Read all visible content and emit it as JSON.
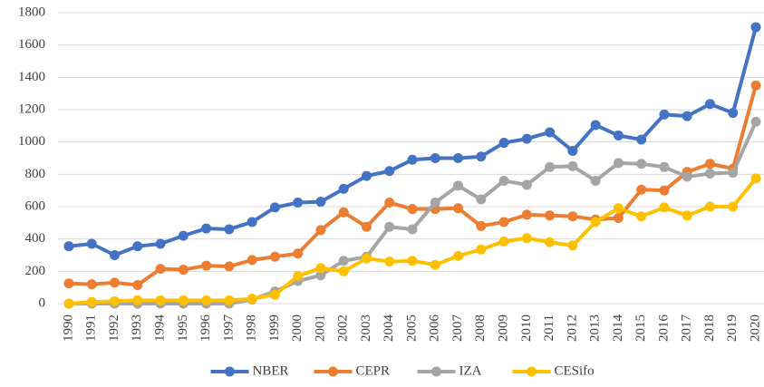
{
  "chart_data": {
    "type": "line",
    "categories": [
      "1990",
      "1991",
      "1992",
      "1993",
      "1994",
      "1995",
      "1996",
      "1997",
      "1998",
      "1999",
      "2000",
      "2001",
      "2002",
      "2003",
      "2004",
      "2005",
      "2006",
      "2007",
      "2008",
      "2009",
      "2010",
      "2011",
      "2012",
      "2013",
      "2014",
      "2015",
      "2016",
      "2017",
      "2018",
      "2019",
      "2020"
    ],
    "series": [
      {
        "name": "NBER",
        "color": "#4472c4",
        "values": [
          355,
          370,
          300,
          355,
          370,
          420,
          465,
          460,
          505,
          595,
          625,
          630,
          710,
          790,
          820,
          890,
          900,
          900,
          910,
          995,
          1020,
          1060,
          945,
          1105,
          1040,
          1015,
          1170,
          1160,
          1235,
          1180,
          1710
        ]
      },
      {
        "name": "CEPR",
        "color": "#ed7d31",
        "values": [
          125,
          120,
          130,
          115,
          215,
          210,
          235,
          230,
          270,
          290,
          310,
          455,
          565,
          475,
          625,
          585,
          585,
          590,
          480,
          505,
          550,
          545,
          540,
          520,
          530,
          705,
          700,
          815,
          865,
          835,
          1350
        ]
      },
      {
        "name": "IZA",
        "color": "#a5a5a5",
        "values": [
          0,
          0,
          0,
          0,
          0,
          0,
          0,
          0,
          25,
          75,
          140,
          175,
          265,
          290,
          475,
          460,
          625,
          730,
          645,
          760,
          735,
          845,
          850,
          760,
          870,
          865,
          845,
          785,
          805,
          810,
          1125
        ]
      },
      {
        "name": "CESifo",
        "color": "#ffc000",
        "values": [
          0,
          10,
          15,
          20,
          20,
          20,
          20,
          20,
          30,
          55,
          170,
          220,
          200,
          280,
          260,
          265,
          240,
          295,
          335,
          385,
          405,
          380,
          360,
          505,
          590,
          540,
          595,
          545,
          600,
          600,
          775
        ]
      }
    ],
    "ylim": [
      0,
      1800
    ],
    "yticks": [
      0,
      200,
      400,
      600,
      800,
      1000,
      1200,
      1400,
      1600,
      1800
    ],
    "grid": true,
    "legend": "bottom"
  }
}
